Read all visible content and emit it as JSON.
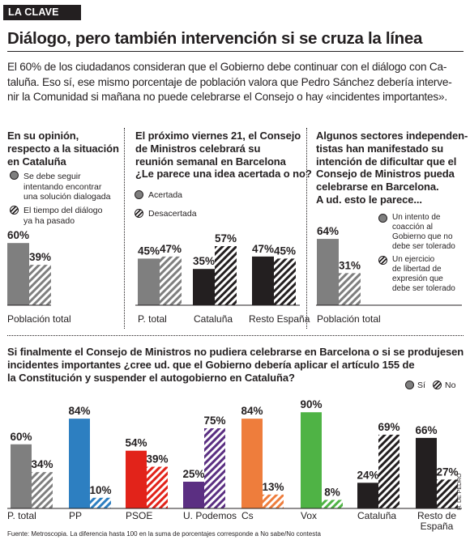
{
  "tag": "LA CLAVE",
  "headline": "Diálogo, pero también intervención si se cruza la línea",
  "intro": [
    "El 60% de los ciudadanos consideran que el Gobierno debe continuar con el diálogo con Ca-",
    "taluña. Eso sí, ese mismo porcentaje de población valora que Pedro Sánchez debería interve-",
    "nir la Comunidad si mañana no puede celebrarse el Consejo o hay «incidentes importantes»."
  ],
  "panel1": {
    "question": [
      "En su opinión,",
      "respecto a la situación",
      "en Cataluña"
    ],
    "legend": [
      [
        "Se debe seguir",
        "intentando encontrar",
        "una solución dialogada"
      ],
      [
        "El tiempo del diálogo",
        "ya ha pasado"
      ]
    ]
  },
  "panel2": {
    "question": [
      "El próximo viernes 21, el Consejo",
      "de Ministros celebrará su",
      "reunión semanal en Barcelona",
      "¿Le parece una idea acertada o no?"
    ],
    "legend": [
      "Acertada",
      "Desacertada"
    ]
  },
  "panel3": {
    "question": [
      "Algunos sectores independen-",
      "tistas han manifestado su",
      "intención de dificultar que el",
      "Consejo de Ministros pueda",
      "celebrarse en Barcelona.",
      "A ud. esto le parece..."
    ],
    "legend": [
      [
        "Un intento de",
        "coacción al",
        "Gobierno que no",
        "debe ser tolerado"
      ],
      [
        "Un ejercicio",
        "de libertad de",
        "expresión que",
        "debe ser tolerado"
      ]
    ]
  },
  "panel4": {
    "question": [
      "Si finalmente el Consejo de Ministros no pudiera celebrarse en Barcelona o si se produjesen",
      "incidentes importantes ¿cree ud. que el Gobierno debería aplicar el artículo 155 de",
      "la Constitución y suspender el autogobierno en Cataluña?"
    ],
    "legend": [
      "Sí",
      "No"
    ]
  },
  "source": "Fuente: Metroscopia. La diferencia hasta 100 en la suma de porcentajes corresponde a No sabe/No contesta",
  "credit": "H. DE PEDRO",
  "colors": {
    "ink": "#231f20",
    "grey": "#7f7f7f",
    "PP": "#2d7fc1",
    "PSOE": "#e2231a",
    "U. Podemos": "#5b2f82",
    "Cs": "#ee7d3c",
    "Vox": "#4fb345"
  },
  "chart_data": [
    {
      "type": "bar",
      "categories": [
        "Población total"
      ],
      "series": [
        {
          "values": [
            60
          ]
        },
        {
          "values": [
            39
          ]
        }
      ],
      "value_labels": [
        [
          "60%"
        ],
        [
          "39%"
        ]
      ]
    },
    {
      "type": "bar",
      "categories": [
        "P. total",
        "Cataluña",
        "Resto España"
      ],
      "series": [
        {
          "name": "Acertada",
          "values": [
            45,
            35,
            47
          ]
        },
        {
          "name": "Desacertada",
          "values": [
            47,
            57,
            45
          ]
        }
      ],
      "value_labels": [
        [
          "45%",
          "35%",
          "47%"
        ],
        [
          "47%",
          "57%",
          "45%"
        ]
      ]
    },
    {
      "type": "bar",
      "categories": [
        "Población total"
      ],
      "series": [
        {
          "values": [
            64
          ]
        },
        {
          "values": [
            31
          ]
        }
      ],
      "value_labels": [
        [
          "64%"
        ],
        [
          "31%"
        ]
      ]
    },
    {
      "type": "bar",
      "categories": [
        "P. total",
        "PP",
        "PSOE",
        "U. Podemos",
        "Cs",
        "Vox",
        "Cataluña",
        "Resto de España"
      ],
      "series": [
        {
          "name": "Sí",
          "values": [
            60,
            84,
            54,
            25,
            84,
            90,
            24,
            66
          ]
        },
        {
          "name": "No",
          "values": [
            34,
            10,
            39,
            75,
            13,
            8,
            69,
            27
          ]
        }
      ],
      "value_labels": [
        [
          "60%",
          "84%",
          "54%",
          "25%",
          "84%",
          "90%",
          "24%",
          "66%"
        ],
        [
          "34%",
          "10%",
          "39%",
          "75%",
          "13%",
          "8%",
          "69%",
          "27%"
        ]
      ]
    }
  ]
}
